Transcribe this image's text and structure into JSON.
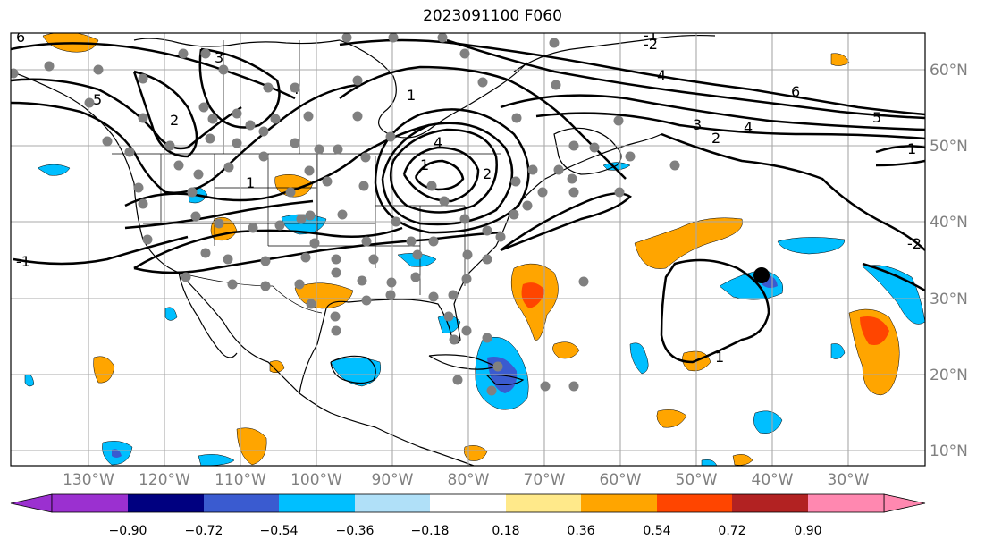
{
  "title": "2023091100 F060",
  "map": {
    "lon_labels": [
      "130°W",
      "120°W",
      "110°W",
      "100°W",
      "90°W",
      "80°W",
      "70°W",
      "60°W",
      "50°W",
      "40°W",
      "30°W"
    ],
    "lat_labels": [
      "60°N",
      "50°N",
      "40°N",
      "30°N",
      "20°N",
      "10°N"
    ],
    "contour_labels": [
      "6",
      "5",
      "4",
      "3",
      "2",
      "1",
      "-1",
      "-2",
      "4",
      "6",
      "5",
      "4",
      "3",
      "2",
      "1",
      "1",
      "1",
      "-2",
      "-1",
      "1",
      "2",
      "4"
    ]
  },
  "colorbar": {
    "ticks": [
      "−0.90",
      "−0.72",
      "−0.54",
      "−0.36",
      "−0.18",
      "0.18",
      "0.36",
      "0.54",
      "0.72",
      "0.90"
    ],
    "colors": [
      "#9b30d0",
      "#000080",
      "#3a5bd0",
      "#00bfff",
      "#b0e0f8",
      "#ffffff",
      "#ffe98a",
      "#ffa500",
      "#ff4500",
      "#b22222",
      "#ff88b0"
    ]
  },
  "markers": {
    "highlight": "large black dot near 33°N 41°W"
  }
}
